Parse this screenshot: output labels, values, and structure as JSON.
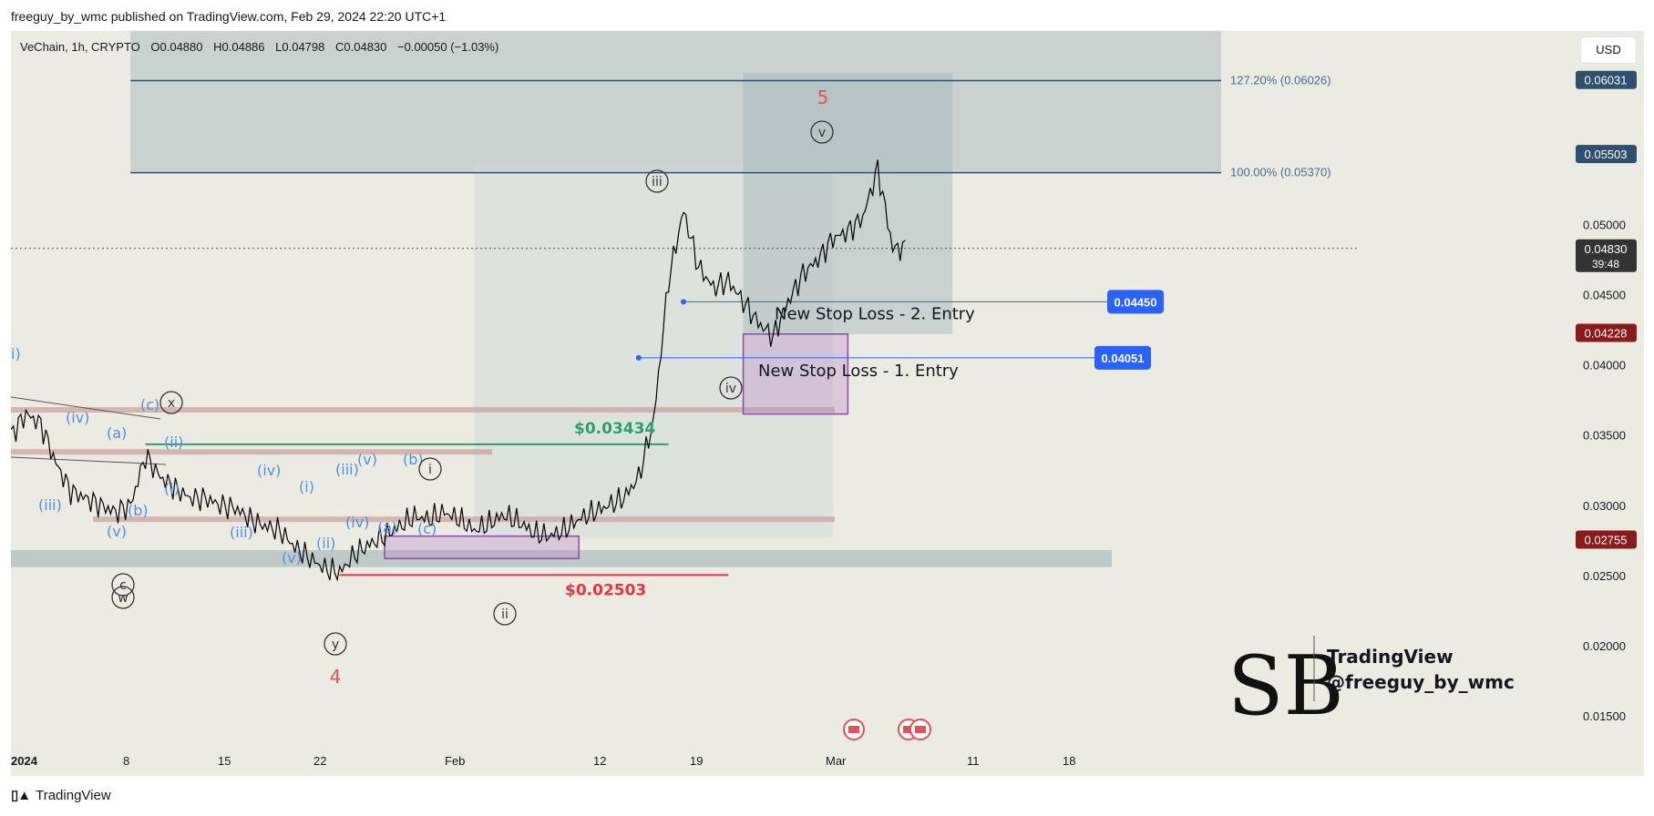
{
  "caption": "freeguy_by_wmc published on TradingView.com, Feb 29, 2024 22:20 UTC+1",
  "legend": {
    "symbol": "VeChain, 1h, CRYPTO",
    "open": "O0.04880",
    "high": "H0.04886",
    "low": "L0.04798",
    "close": "C0.04830",
    "change": "−0.00050 (−1.03%)"
  },
  "currency_button": "USD",
  "footer": {
    "brand": "TradingView"
  },
  "watermark": {
    "line1": "TradingView",
    "line2": "@freeguy_by_wmc"
  },
  "colors": {
    "background": "#ecebe2",
    "candle": "#000000",
    "wave_blue": "#4f8fe6",
    "wave_dark": "#333333",
    "wave_red": "#e0525c",
    "green_level": "#2e9e6e",
    "red_level": "#e8343c",
    "entry_line": "#2962ff",
    "zone_teal": "#9fb4b8",
    "zone_purple": "#b987c9",
    "zone_rose": "#c9a09e",
    "price_tag_navy": "#2f4f6f",
    "price_tag_red": "#8b1a1a",
    "price_tag_dark": "#333333"
  },
  "chart_data": {
    "type": "line",
    "title": "",
    "xlabel": "",
    "ylabel": "",
    "x_ticks": [
      "2024",
      "8",
      "15",
      "22",
      "Feb",
      "12",
      "19",
      "Mar",
      "11",
      "18"
    ],
    "y_ticks": [
      "0.05000",
      "0.04500",
      "0.04000",
      "0.03500",
      "0.03000",
      "0.02500",
      "0.02000",
      "0.01500"
    ],
    "ylim": [
      0.0135,
      0.0625
    ],
    "scale": "linear",
    "grid": false,
    "series": [
      {
        "values_note_dates": "approximate hourly closes read from chart, keyed by date",
        "x": [
          "2024-01-01",
          "2024-01-02",
          "2024-01-03",
          "2024-01-04",
          "2024-01-05",
          "2024-01-06",
          "2024-01-07",
          "2024-01-08",
          "2024-01-09",
          "2024-01-10",
          "2024-01-11",
          "2024-01-12",
          "2024-01-13",
          "2024-01-14",
          "2024-01-15",
          "2024-01-16",
          "2024-01-17",
          "2024-01-18",
          "2024-01-19",
          "2024-01-20",
          "2024-01-21",
          "2024-01-22",
          "2024-01-23",
          "2024-01-24",
          "2024-01-25",
          "2024-01-26",
          "2024-01-27",
          "2024-01-28",
          "2024-01-29",
          "2024-01-30",
          "2024-01-31",
          "2024-02-01",
          "2024-02-02",
          "2024-02-03",
          "2024-02-04",
          "2024-02-05",
          "2024-02-06",
          "2024-02-07",
          "2024-02-08",
          "2024-02-09",
          "2024-02-10",
          "2024-02-11",
          "2024-02-12",
          "2024-02-13",
          "2024-02-14",
          "2024-02-15",
          "2024-02-16",
          "2024-02-17",
          "2024-02-18",
          "2024-02-19",
          "2024-02-20",
          "2024-02-21",
          "2024-02-22",
          "2024-02-23",
          "2024-02-24",
          "2024-02-25",
          "2024-02-26",
          "2024-02-27",
          "2024-02-28",
          "2024-02-29"
        ],
        "values": [
          0.035,
          0.0365,
          0.0358,
          0.033,
          0.031,
          0.0305,
          0.03,
          0.0295,
          0.03,
          0.0335,
          0.032,
          0.0312,
          0.0305,
          0.0305,
          0.03,
          0.0298,
          0.029,
          0.0285,
          0.0282,
          0.027,
          0.0262,
          0.0255,
          0.0252,
          0.0265,
          0.0272,
          0.0278,
          0.0285,
          0.0292,
          0.029,
          0.0295,
          0.029,
          0.0282,
          0.0287,
          0.0293,
          0.0288,
          0.028,
          0.0278,
          0.0282,
          0.029,
          0.0295,
          0.03,
          0.0305,
          0.032,
          0.036,
          0.046,
          0.051,
          0.047,
          0.0455,
          0.046,
          0.0445,
          0.043,
          0.042,
          0.0445,
          0.0465,
          0.0475,
          0.049,
          0.0495,
          0.0505,
          0.054,
          0.0483
        ]
      }
    ],
    "price_tags": [
      {
        "value": 0.06031,
        "label": "0.06031",
        "color": "#2f4f6f"
      },
      {
        "value": 0.05503,
        "label": "0.05503",
        "color": "#2f4f6f"
      },
      {
        "value": 0.0483,
        "label": "0.04830",
        "sub": "39:48",
        "color": "#333333"
      },
      {
        "value": 0.04228,
        "label": "0.04228",
        "color": "#8b1a1a"
      },
      {
        "value": 0.02755,
        "label": "0.02755",
        "color": "#8b1a1a"
      }
    ],
    "fib_levels": [
      {
        "value": 0.06026,
        "label": "127.20% (0.06026)"
      },
      {
        "value": 0.0537,
        "label": "100.00% (0.05370)"
      }
    ],
    "entry_lines": [
      {
        "value": 0.0445,
        "label": "0.04450",
        "annotation": "New Stop Loss - 2. Entry"
      },
      {
        "value": 0.04051,
        "label": "0.04051",
        "annotation": "New Stop Loss - 1. Entry"
      }
    ],
    "price_labels": [
      {
        "value": 0.03434,
        "text": "$0.03434",
        "color": "#2e9e6e"
      },
      {
        "value": 0.02503,
        "text": "$0.02503",
        "color": "#e8343c"
      }
    ],
    "wave_labels": {
      "blue": [
        "i)",
        "(iv)",
        "(c)",
        "(a)",
        "(ii)",
        "(iii)",
        "(i)",
        "(b)",
        "(v)",
        "(iv)",
        "(i)",
        "(iii)",
        "(v)",
        "(iii)",
        "(ii)",
        "(iv)",
        "(a)",
        "(c)",
        "(b)",
        "(v)"
      ],
      "circled": [
        "x",
        "i",
        "ii",
        "iii",
        "iv",
        "v",
        "y",
        "c",
        "w"
      ],
      "red": [
        "5",
        "4"
      ]
    }
  }
}
